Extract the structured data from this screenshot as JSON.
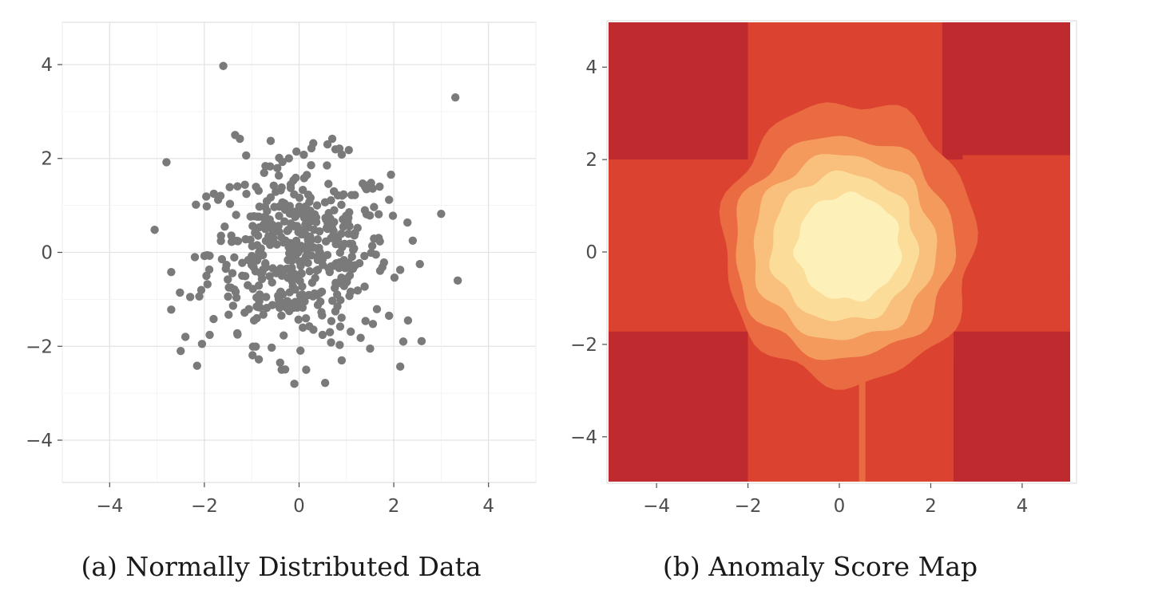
{
  "chart_data": [
    {
      "type": "scatter",
      "caption": "(a) Normally Distributed Data",
      "xlim": [
        -5,
        5
      ],
      "ylim": [
        -4.9,
        4.9
      ],
      "x_ticks": [
        -4,
        -2,
        0,
        2,
        4
      ],
      "y_ticks": [
        -4,
        -2,
        0,
        2,
        4
      ],
      "x_tick_labels": [
        "−4",
        "−2",
        "0",
        "2",
        "4"
      ],
      "y_tick_labels": [
        "−4",
        "−2",
        "0",
        "2",
        "4"
      ],
      "grid": true,
      "point_color": "#7a7a7a",
      "points": [
        [
          -1.6,
          3.97
        ],
        [
          3.3,
          3.3
        ],
        [
          -2.8,
          1.92
        ],
        [
          -3.05,
          0.48
        ],
        [
          3.35,
          -0.6
        ],
        [
          3.0,
          0.82
        ],
        [
          -2.7,
          -0.42
        ],
        [
          -2.7,
          -1.22
        ],
        [
          -2.5,
          -2.1
        ],
        [
          -2.4,
          -1.8
        ],
        [
          -2.05,
          -1.95
        ],
        [
          -0.1,
          -2.8
        ],
        [
          0.55,
          -2.78
        ],
        [
          0.15,
          -2.5
        ],
        [
          -0.4,
          -2.35
        ],
        [
          -0.85,
          -2.28
        ],
        [
          1.5,
          -2.05
        ],
        [
          2.2,
          -1.9
        ],
        [
          0.45,
          -1.05
        ],
        [
          -1.3,
          -1.75
        ],
        [
          -2.2,
          -0.1
        ],
        [
          -2.3,
          -0.95
        ],
        [
          -1.35,
          2.5
        ],
        [
          -1.25,
          2.42
        ],
        [
          0.6,
          2.3
        ],
        [
          0.7,
          2.42
        ],
        [
          1.05,
          2.18
        ],
        [
          0.1,
          2.08
        ],
        [
          2.4,
          0.25
        ],
        [
          2.55,
          -0.25
        ],
        [
          2.3,
          -1.45
        ],
        [
          1.9,
          -1.35
        ],
        [
          -1.8,
          1.25
        ],
        [
          -1.95,
          0.98
        ],
        [
          1.9,
          1.12
        ],
        [
          1.7,
          1.4
        ],
        [
          -0.95,
          -1.45
        ],
        [
          0.9,
          -2.3
        ],
        [
          1.3,
          -1.82
        ]
      ],
      "cluster": {
        "count": 460,
        "center": [
          0,
          0
        ],
        "std": 0.95
      }
    },
    {
      "type": "heatmap",
      "caption": "(b) Anomaly Score Map",
      "xlim": [
        -5.05,
        5.05
      ],
      "ylim": [
        -4.97,
        4.97
      ],
      "x_ticks": [
        -4,
        -2,
        0,
        2,
        4
      ],
      "y_ticks": [
        -4,
        -2,
        0,
        2,
        4
      ],
      "x_tick_labels": [
        "−4",
        "−2",
        "0",
        "2",
        "4"
      ],
      "y_tick_labels": [
        "−4",
        "−2",
        "0",
        "2",
        "4"
      ],
      "levels": [
        "#8e1a2a",
        "#be2a2d",
        "#db4330",
        "#ea6a42",
        "#f39a5c",
        "#f8c07c",
        "#fbdc98",
        "#fdf0b8"
      ],
      "rings": [
        {
          "level": 3,
          "cx": 0.2,
          "cy": 0.2,
          "rx": 2.75,
          "ry": 3.05
        },
        {
          "level": 4,
          "cx": 0.1,
          "cy": 0.1,
          "rx": 2.4,
          "ry": 2.4
        },
        {
          "level": 5,
          "cx": 0.1,
          "cy": 0.1,
          "rx": 2.0,
          "ry": 2.0
        },
        {
          "level": 6,
          "cx": 0.1,
          "cy": 0.1,
          "rx": 1.6,
          "ry": 1.6
        },
        {
          "level": 7,
          "cx": 0.2,
          "cy": 0.1,
          "rx": 1.15,
          "ry": 1.15
        }
      ],
      "rects": [
        {
          "level": 0,
          "x": [
            -5.05,
            -2.0
          ],
          "y": [
            2.35,
            4.97
          ]
        },
        {
          "level": 0,
          "x": [
            2.25,
            5.05
          ],
          "y": [
            2.1,
            4.97
          ]
        },
        {
          "level": 0,
          "x": [
            -5.05,
            -2.7
          ],
          "y": [
            -4.97,
            -2.55
          ]
        },
        {
          "level": 0,
          "x": [
            2.5,
            5.05
          ],
          "y": [
            -4.97,
            -2.3
          ]
        },
        {
          "level": 1,
          "x": [
            -5.05,
            -2.0
          ],
          "y": [
            -4.97,
            -1.72
          ]
        },
        {
          "level": 1,
          "x": [
            2.5,
            5.05
          ],
          "y": [
            -4.97,
            -1.72
          ]
        },
        {
          "level": 1,
          "x": [
            2.2,
            5.05
          ],
          "y": [
            2.1,
            4.97
          ]
        },
        {
          "level": 1,
          "x": [
            -5.05,
            -2.0
          ],
          "y": [
            2.0,
            4.97
          ]
        },
        {
          "level": 1,
          "x": [
            -0.8,
            0.5
          ],
          "y": [
            2.1,
            4.97
          ]
        },
        {
          "level": 1,
          "x": [
            2.25,
            2.7
          ],
          "y": [
            -1.72,
            2.1
          ]
        },
        {
          "level": 2,
          "x": [
            -5.05,
            5.05
          ],
          "y": [
            -1.72,
            2.0
          ]
        },
        {
          "level": 2,
          "x": [
            -2.0,
            2.25
          ],
          "y": [
            -4.97,
            4.97
          ]
        },
        {
          "level": 2,
          "x": [
            -0.8,
            0.5
          ],
          "y": [
            -4.97,
            4.97
          ]
        },
        {
          "level": 2,
          "x": [
            3.3,
            5.05
          ],
          "y": [
            -0.12,
            -0.2
          ]
        },
        {
          "level": 2,
          "x": [
            3.3,
            5.05
          ],
          "y": [
            -0.58,
            -0.72
          ]
        }
      ],
      "thin_line": {
        "level": 3,
        "x": 0.5,
        "y": [
          -4.97,
          -2.8
        ]
      }
    }
  ]
}
